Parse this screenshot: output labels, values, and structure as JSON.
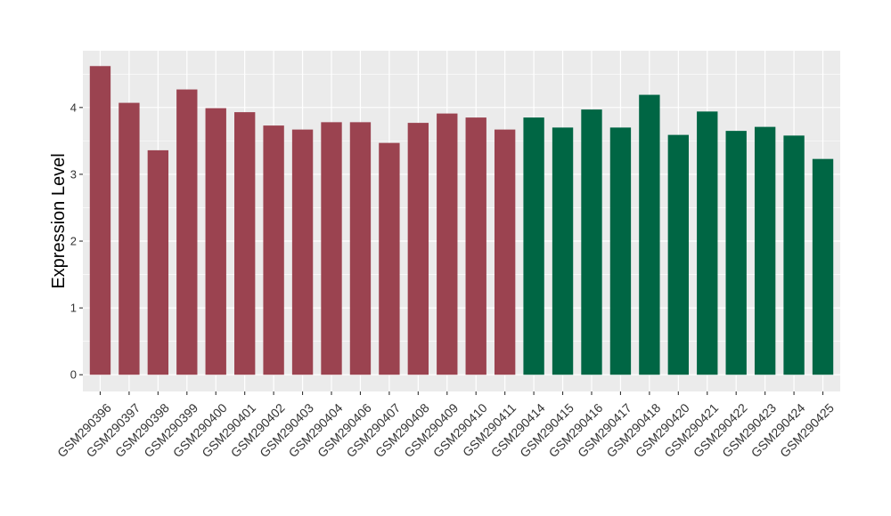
{
  "chart_data": {
    "type": "bar",
    "title": "",
    "xlabel": "",
    "ylabel": "Expression Level",
    "ylim": [
      -0.25,
      4.85
    ],
    "yticks": [
      0,
      1,
      2,
      3,
      4
    ],
    "grid": true,
    "legend": "none",
    "colors": {
      "panel_background": "#ebebeb",
      "grid_major": "#ffffff",
      "group_1": "#9b4350",
      "group_2": "#006644"
    },
    "categories": [
      "GSM290396",
      "GSM290397",
      "GSM290398",
      "GSM290399",
      "GSM290400",
      "GSM290401",
      "GSM290402",
      "GSM290403",
      "GSM290404",
      "GSM290406",
      "GSM290407",
      "GSM290408",
      "GSM290409",
      "GSM290410",
      "GSM290411",
      "GSM290414",
      "GSM290415",
      "GSM290416",
      "GSM290417",
      "GSM290418",
      "GSM290420",
      "GSM290421",
      "GSM290422",
      "GSM290423",
      "GSM290424",
      "GSM290425"
    ],
    "values": [
      4.62,
      4.07,
      3.36,
      4.27,
      3.99,
      3.93,
      3.73,
      3.67,
      3.78,
      3.78,
      3.47,
      3.77,
      3.91,
      3.85,
      3.67,
      3.85,
      3.7,
      3.97,
      3.7,
      4.19,
      3.59,
      3.94,
      3.65,
      3.71,
      3.58,
      3.23
    ],
    "groups": [
      1,
      1,
      1,
      1,
      1,
      1,
      1,
      1,
      1,
      1,
      1,
      1,
      1,
      1,
      1,
      2,
      2,
      2,
      2,
      2,
      2,
      2,
      2,
      2,
      2,
      2
    ]
  }
}
